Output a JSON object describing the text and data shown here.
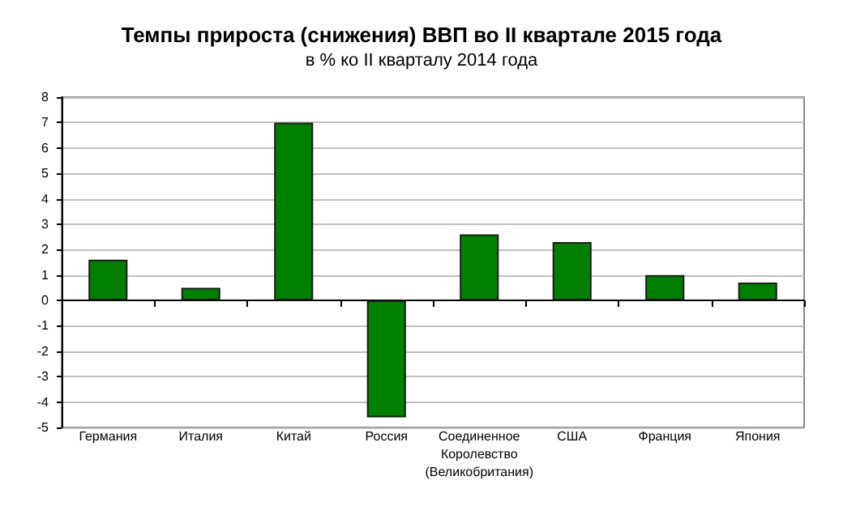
{
  "chart_data": {
    "type": "bar",
    "title": "Темпы прироста (снижения) ВВП во II квартале 2015 года",
    "subtitle": "в % ко II кварталу 2014 года",
    "categories": [
      "Германия",
      "Италия",
      "Китай",
      "Россия",
      "Соединенное\nКоролевство\n(Великобритания)",
      "США",
      "Франция",
      "Япония"
    ],
    "values": [
      1.6,
      0.5,
      7.0,
      -4.6,
      2.6,
      2.3,
      1.0,
      0.7
    ],
    "color": "#008000",
    "ylim": [
      -5,
      8
    ],
    "yticks": [
      -5,
      -4,
      -3,
      -2,
      -1,
      0,
      1,
      2,
      3,
      4,
      5,
      6,
      7,
      8
    ],
    "grid": "y"
  }
}
